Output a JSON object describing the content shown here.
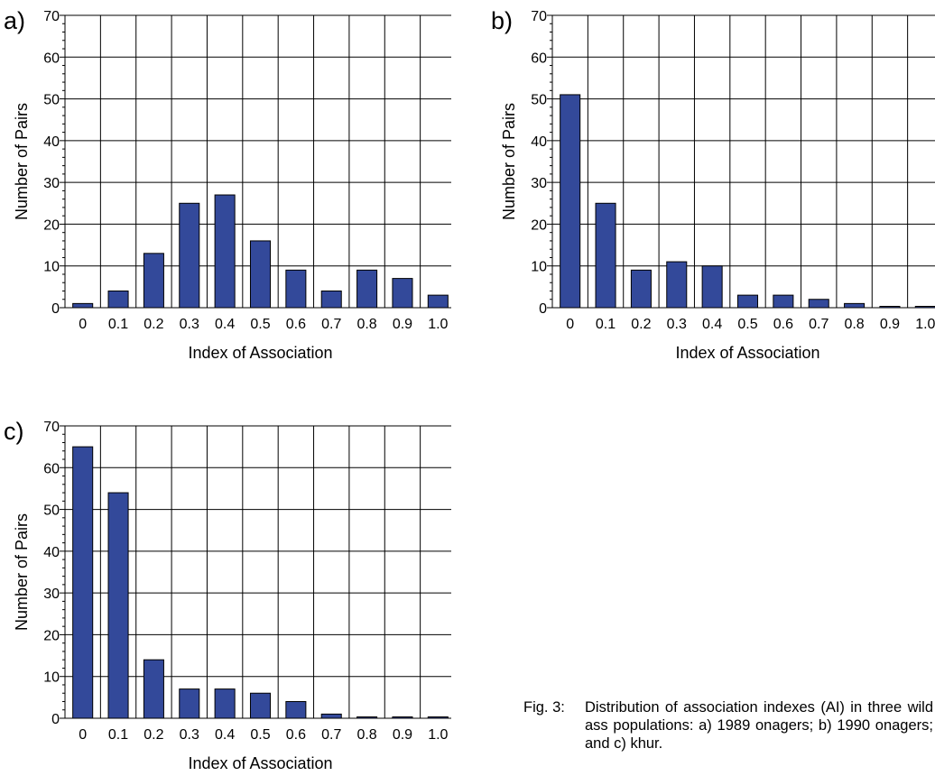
{
  "chart_data": [
    {
      "panel": "a)",
      "type": "bar",
      "categories": [
        "0",
        "0.1",
        "0.2",
        "0.3",
        "0.4",
        "0.5",
        "0.6",
        "0.7",
        "0.8",
        "0.9",
        "1.0"
      ],
      "values": [
        1,
        4,
        13,
        25,
        27,
        16,
        9,
        4,
        9,
        7,
        3
      ],
      "xlabel": "Index of Association",
      "ylabel": "Number of Pairs",
      "ylim": [
        0,
        70
      ],
      "yticks": [
        "0",
        "10",
        "20",
        "30",
        "40",
        "50",
        "60",
        "70"
      ],
      "grid": true,
      "bar_color": "#33499a"
    },
    {
      "panel": "b)",
      "type": "bar",
      "categories": [
        "0",
        "0.1",
        "0.2",
        "0.3",
        "0.4",
        "0.5",
        "0.6",
        "0.7",
        "0.8",
        "0.9",
        "1.0"
      ],
      "values": [
        51,
        25,
        9,
        11,
        10,
        3,
        3,
        2,
        1,
        0,
        0
      ],
      "xlabel": "Index of Association",
      "ylabel": "Number of Pairs",
      "ylim": [
        0,
        70
      ],
      "yticks": [
        "0",
        "10",
        "20",
        "30",
        "40",
        "50",
        "60",
        "70"
      ],
      "grid": true,
      "bar_color": "#33499a"
    },
    {
      "panel": "c)",
      "type": "bar",
      "categories": [
        "0",
        "0.1",
        "0.2",
        "0.3",
        "0.4",
        "0.5",
        "0.6",
        "0.7",
        "0.8",
        "0.9",
        "1.0"
      ],
      "values": [
        65,
        54,
        14,
        7,
        7,
        6,
        4,
        1,
        0,
        0,
        0
      ],
      "xlabel": "Index of Association",
      "ylabel": "Number of Pairs",
      "ylim": [
        0,
        70
      ],
      "yticks": [
        "0",
        "10",
        "20",
        "30",
        "40",
        "50",
        "60",
        "70"
      ],
      "grid": true,
      "bar_color": "#33499a"
    }
  ],
  "caption": {
    "label": "Fig. 3:",
    "text": "Distribution of association indexes (AI) in three wild ass populations: a) 1989 onagers; b) 1990 onagers; and c) khur."
  }
}
